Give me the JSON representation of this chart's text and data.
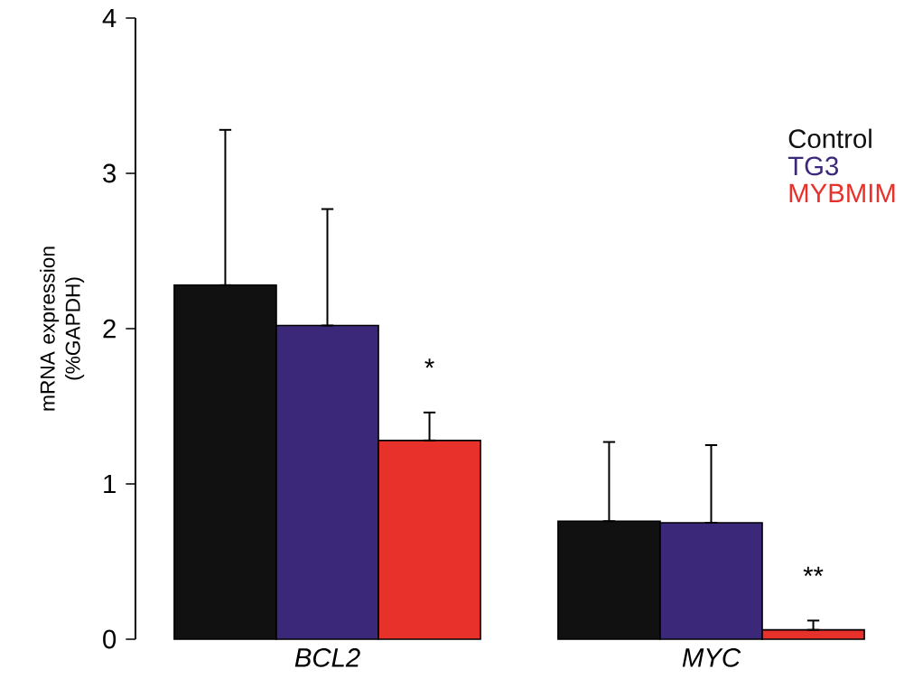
{
  "chart_data": {
    "type": "bar",
    "ylabel": "mRNA expression (%GAPDH)",
    "categories": [
      "BCL2",
      "MYC"
    ],
    "series": [
      {
        "name": "Control",
        "color": "#111111",
        "values": [
          2.28,
          0.76
        ],
        "errors": [
          [
            2.28,
            3.28
          ],
          [
            0.76,
            1.27
          ]
        ]
      },
      {
        "name": "TG3",
        "color": "#3b2878",
        "values": [
          2.02,
          0.75
        ],
        "errors": [
          [
            2.02,
            2.77
          ],
          [
            0.75,
            1.25
          ]
        ]
      },
      {
        "name": "MYBMIM",
        "color": "#e8312b",
        "values": [
          1.28,
          0.06
        ],
        "errors": [
          [
            1.28,
            1.46
          ],
          [
            0.06,
            0.12
          ]
        ]
      }
    ],
    "ylim": [
      0,
      4
    ],
    "yticks": [
      0,
      1,
      2,
      3,
      4
    ],
    "grid": false,
    "legend": "top right",
    "annotations": [
      "*",
      "**"
    ]
  }
}
